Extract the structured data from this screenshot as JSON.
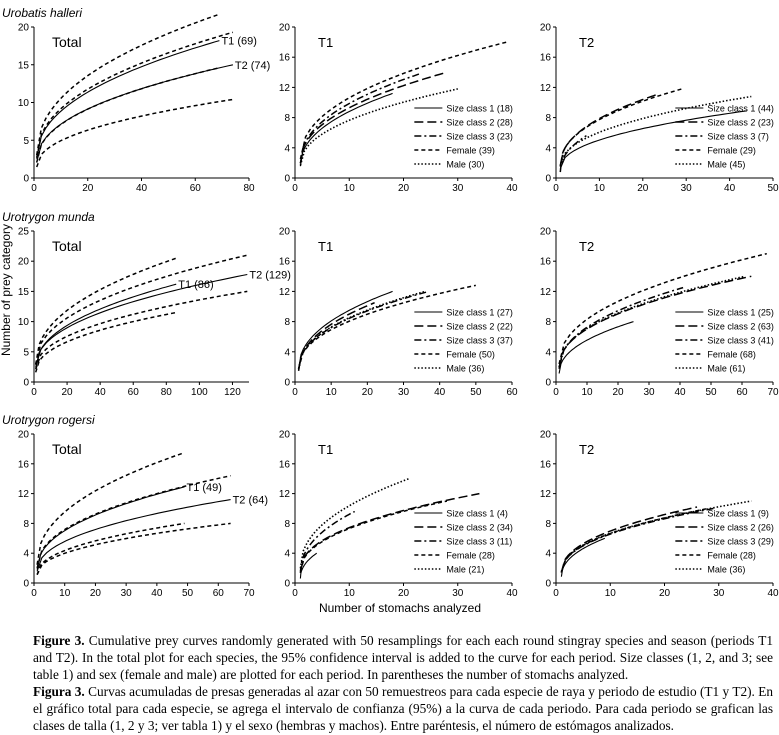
{
  "figure": {
    "y_axis_label": "Number of prey category",
    "x_axis_label": "Number of stomachs analyzed"
  },
  "captions": {
    "en_label": "Figure 3.",
    "en_text": " Cumulative prey curves randomly generated with 50 resamplings for each each round stingray species and season (periods T1 and T2). In the total plot for each species, the 95% confidence interval is added to the curve for each period. Size classes (1, 2, and 3; see table 1) and sex (female and male) are plotted for each period. In parentheses the number of stomachs analyzed.",
    "es_label": "Figura 3.",
    "es_text": " Curvas acumuladas de presas generadas al azar con 50 remuestreos para cada especie de raya y periodo de estudio (T1 y T2). En el gráfico total para cada especie, se agrega el intervalo de confianza (95%) a la curva de cada periodo. Para cada periodo se grafican las clases de talla (1, 2 y 3; ver tabla 1) y el sexo (hembras y machos). Entre paréntesis, el número de estómagos analizados."
  },
  "chart_data": [
    {
      "type": "line",
      "species": "Urobatis halleri",
      "title": "Total",
      "xlim": [
        0,
        80
      ],
      "xticks": [
        0,
        20,
        40,
        60,
        80
      ],
      "ylim": [
        0,
        20
      ],
      "yticks": [
        0,
        5,
        10,
        15,
        20
      ],
      "series": [
        {
          "name": "T1 (69)",
          "style": "solid",
          "n": 69,
          "final": 18.2
        },
        {
          "name": "T1 upper 95%",
          "style": "dash",
          "n": 69,
          "final": 21.7
        },
        {
          "name": "T1 lower 95%",
          "style": "dash",
          "n": 69,
          "final": 14.6
        },
        {
          "name": "T2 (74)",
          "style": "solid",
          "n": 74,
          "final": 15.0
        },
        {
          "name": "T2 upper 95%",
          "style": "dash",
          "n": 74,
          "final": 19.3
        },
        {
          "name": "T2 lower 95%",
          "style": "dash",
          "n": 74,
          "final": 10.4
        }
      ],
      "annotations": [
        {
          "text": "T1 (69)",
          "x": 69,
          "y": 18.2
        },
        {
          "text": "T2 (74)",
          "x": 74,
          "y": 15.0
        }
      ]
    },
    {
      "type": "line",
      "species": "",
      "title": "T1",
      "xlim": [
        0,
        40
      ],
      "xticks": [
        0,
        10,
        20,
        30,
        40
      ],
      "ylim": [
        0,
        20
      ],
      "yticks": [
        0,
        4,
        8,
        12,
        16,
        20
      ],
      "series": [
        {
          "name": "Size class 1 (18)",
          "style": "solid",
          "n": 18,
          "final": 11.2
        },
        {
          "name": "Size class 2 (28)",
          "style": "longdash",
          "n": 28,
          "final": 14.0
        },
        {
          "name": "Size class 3 (23)",
          "style": "dashdot",
          "n": 23,
          "final": 13.8
        },
        {
          "name": "Female (39)",
          "style": "dash",
          "n": 39,
          "final": 18.0
        },
        {
          "name": "Male (30)",
          "style": "dot",
          "n": 30,
          "final": 11.8
        }
      ]
    },
    {
      "type": "line",
      "species": "",
      "title": "T2",
      "xlim": [
        0,
        50
      ],
      "xticks": [
        0,
        10,
        20,
        30,
        40,
        50
      ],
      "ylim": [
        0,
        20
      ],
      "yticks": [
        0,
        4,
        8,
        12,
        16,
        20
      ],
      "series": [
        {
          "name": "Size class 1 (44)",
          "style": "solid",
          "n": 44,
          "final": 8.9
        },
        {
          "name": "Size class 2 (23)",
          "style": "longdash",
          "n": 23,
          "final": 11.0
        },
        {
          "name": "Size class 3 (7)",
          "style": "dashdot",
          "n": 7,
          "final": 5.6
        },
        {
          "name": "Female (29)",
          "style": "dash",
          "n": 29,
          "final": 11.8
        },
        {
          "name": "Male (45)",
          "style": "dot",
          "n": 45,
          "final": 10.8
        }
      ]
    },
    {
      "type": "line",
      "species": "Urotrygon munda",
      "title": "Total",
      "xlim": [
        0,
        130
      ],
      "xticks": [
        0,
        20,
        40,
        60,
        80,
        100,
        120
      ],
      "ylim": [
        0,
        25
      ],
      "yticks": [
        0,
        5,
        10,
        15,
        20,
        25
      ],
      "series": [
        {
          "name": "T1 (86)",
          "style": "solid",
          "n": 86,
          "final": 16.2
        },
        {
          "name": "T1 upper 95%",
          "style": "dash",
          "n": 86,
          "final": 20.5
        },
        {
          "name": "T1 lower 95%",
          "style": "dash",
          "n": 86,
          "final": 11.5
        },
        {
          "name": "T2 (129)",
          "style": "solid",
          "n": 129,
          "final": 17.8
        },
        {
          "name": "T2 upper 95%",
          "style": "dash",
          "n": 129,
          "final": 21.0
        },
        {
          "name": "T2 lower 95%",
          "style": "dash",
          "n": 129,
          "final": 15.0
        }
      ],
      "annotations": [
        {
          "text": "T1 (86)",
          "x": 86,
          "y": 16.2
        },
        {
          "text": "T2 (129)",
          "x": 129,
          "y": 17.8
        }
      ]
    },
    {
      "type": "line",
      "species": "",
      "title": "T1",
      "xlim": [
        0,
        60
      ],
      "xticks": [
        0,
        10,
        20,
        30,
        40,
        50,
        60
      ],
      "ylim": [
        0,
        20
      ],
      "yticks": [
        0,
        4,
        8,
        12,
        16,
        20
      ],
      "series": [
        {
          "name": "Size class 1 (27)",
          "style": "solid",
          "n": 27,
          "final": 12.0
        },
        {
          "name": "Size class 2 (22)",
          "style": "longdash",
          "n": 22,
          "final": 10.5
        },
        {
          "name": "Size class 3 (37)",
          "style": "dashdot",
          "n": 37,
          "final": 12.0
        },
        {
          "name": "Female (50)",
          "style": "dash",
          "n": 50,
          "final": 12.8
        },
        {
          "name": "Male (36)",
          "style": "dot",
          "n": 36,
          "final": 12.0
        }
      ]
    },
    {
      "type": "line",
      "species": "",
      "title": "T2",
      "xlim": [
        0,
        70
      ],
      "xticks": [
        0,
        10,
        20,
        30,
        40,
        50,
        60,
        70
      ],
      "ylim": [
        0,
        20
      ],
      "yticks": [
        0,
        4,
        8,
        12,
        16,
        20
      ],
      "series": [
        {
          "name": "Size class 1 (25)",
          "style": "solid",
          "n": 25,
          "final": 8.0
        },
        {
          "name": "Size class 2 (63)",
          "style": "longdash",
          "n": 63,
          "final": 14.0
        },
        {
          "name": "Size class 3 (41)",
          "style": "dashdot",
          "n": 41,
          "final": 12.5
        },
        {
          "name": "Female (68)",
          "style": "dash",
          "n": 68,
          "final": 17.0
        },
        {
          "name": "Male (61)",
          "style": "dot",
          "n": 61,
          "final": 14.0
        }
      ]
    },
    {
      "type": "line",
      "species": "Urotrygon rogersi",
      "title": "Total",
      "xlim": [
        0,
        70
      ],
      "xticks": [
        0,
        10,
        20,
        30,
        40,
        50,
        60,
        70
      ],
      "ylim": [
        0,
        20
      ],
      "yticks": [
        0,
        4,
        8,
        12,
        16,
        20
      ],
      "series": [
        {
          "name": "T1 (49)",
          "style": "solid",
          "n": 49,
          "final": 12.9
        },
        {
          "name": "T1 upper 95%",
          "style": "dash",
          "n": 49,
          "final": 17.5
        },
        {
          "name": "T1 lower 95%",
          "style": "dash",
          "n": 49,
          "final": 8.0
        },
        {
          "name": "T2 (64)",
          "style": "solid",
          "n": 64,
          "final": 11.2
        },
        {
          "name": "T2 upper 95%",
          "style": "dash",
          "n": 64,
          "final": 14.4
        },
        {
          "name": "T2 lower 95%",
          "style": "dash",
          "n": 64,
          "final": 8.0
        }
      ],
      "annotations": [
        {
          "text": "T1 (49)",
          "x": 49,
          "y": 12.9
        },
        {
          "text": "T2 (64)",
          "x": 64,
          "y": 11.2
        }
      ]
    },
    {
      "type": "line",
      "species": "",
      "title": "T1",
      "xlim": [
        0,
        40
      ],
      "xticks": [
        0,
        10,
        20,
        30,
        40
      ],
      "ylim": [
        0,
        20
      ],
      "yticks": [
        0,
        4,
        8,
        12,
        16,
        20
      ],
      "series": [
        {
          "name": "Size class 1 (4)",
          "style": "solid",
          "n": 4,
          "final": 4.0
        },
        {
          "name": "Size class 2 (34)",
          "style": "longdash",
          "n": 34,
          "final": 12.0
        },
        {
          "name": "Size class 3 (11)",
          "style": "dashdot",
          "n": 11,
          "final": 9.6
        },
        {
          "name": "Female (28)",
          "style": "dash",
          "n": 28,
          "final": 11.0
        },
        {
          "name": "Male (21)",
          "style": "dot",
          "n": 21,
          "final": 14.0
        }
      ]
    },
    {
      "type": "line",
      "species": "",
      "title": "T2",
      "xlim": [
        0,
        40
      ],
      "xticks": [
        0,
        10,
        20,
        30,
        40
      ],
      "ylim": [
        0,
        20
      ],
      "yticks": [
        0,
        4,
        8,
        12,
        16,
        20
      ],
      "series": [
        {
          "name": "Size class 1 (9)",
          "style": "solid",
          "n": 9,
          "final": 6.0
        },
        {
          "name": "Size class 2 (26)",
          "style": "longdash",
          "n": 26,
          "final": 10.2
        },
        {
          "name": "Size class 3 (29)",
          "style": "dashdot",
          "n": 29,
          "final": 10.0
        },
        {
          "name": "Female (28)",
          "style": "dash",
          "n": 28,
          "final": 10.0
        },
        {
          "name": "Male (36)",
          "style": "dot",
          "n": 36,
          "final": 11.0
        }
      ]
    }
  ]
}
